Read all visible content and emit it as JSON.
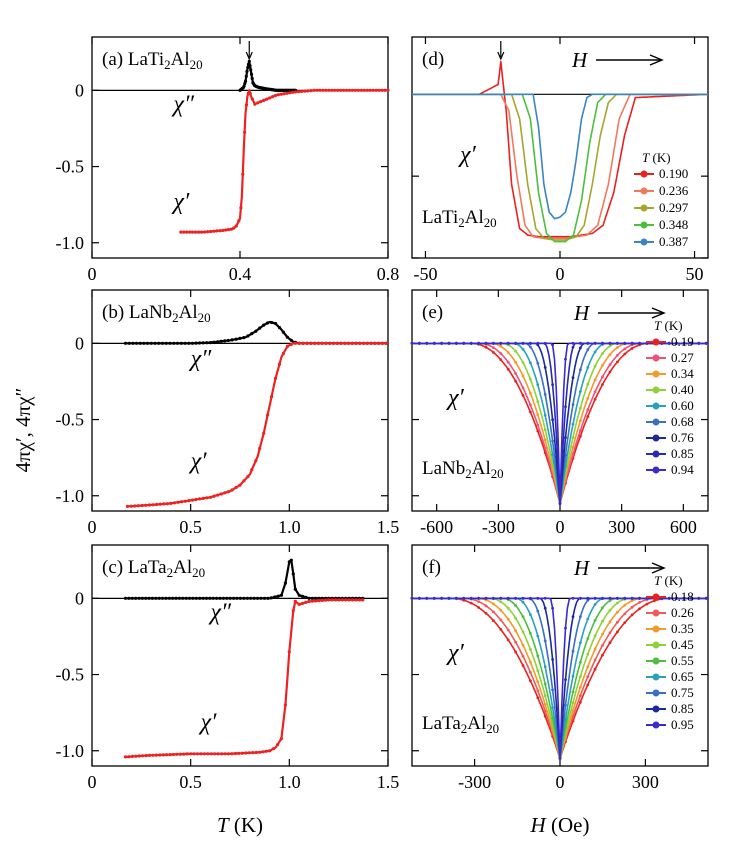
{
  "figure": {
    "ylabel": "4πχ′, 4πχ″",
    "xlabel_left_var": "T",
    "xlabel_left_unit": " (K)",
    "xlabel_right_var": "H",
    "xlabel_right_unit": " (Oe)"
  },
  "chart_data": [
    {
      "type": "line",
      "panel": "(a)",
      "compound": "LaTi2Al20",
      "compound_base": "LaTi",
      "compound_sub1": "2",
      "compound_mid": "Al",
      "compound_sub2": "20",
      "xlabel": "T (K)",
      "xlim": [
        0,
        0.8
      ],
      "ylim": [
        -1.1,
        0.35
      ],
      "xticks": [
        0,
        0.4,
        0.8
      ],
      "xtick_labels": [
        "0",
        "0.4",
        "0.8"
      ],
      "yticks": [
        0,
        -0.5,
        -1.0
      ],
      "ytick_labels": [
        "0",
        "-0.5",
        "-1.0"
      ],
      "arrow_at_x": 0.425,
      "series": [
        {
          "name": "χ″",
          "color": "#000000",
          "x": [
            0.4,
            0.41,
            0.415,
            0.42,
            0.425,
            0.43,
            0.435,
            0.44,
            0.45,
            0.47,
            0.5,
            0.55
          ],
          "y": [
            0.0,
            0.02,
            0.06,
            0.14,
            0.19,
            0.12,
            0.05,
            0.03,
            0.02,
            0.01,
            0.0,
            0.0
          ]
        },
        {
          "name": "χ′",
          "color": "#ee2222",
          "x": [
            0.24,
            0.3,
            0.35,
            0.38,
            0.39,
            0.4,
            0.405,
            0.41,
            0.415,
            0.42,
            0.425,
            0.43,
            0.44,
            0.46,
            0.5,
            0.55,
            0.6,
            0.8
          ],
          "y": [
            -0.93,
            -0.93,
            -0.92,
            -0.91,
            -0.89,
            -0.84,
            -0.7,
            -0.4,
            -0.15,
            -0.04,
            0.0,
            -0.04,
            -0.09,
            -0.07,
            -0.03,
            -0.01,
            0.0,
            0.0
          ]
        }
      ],
      "labels": [
        {
          "text": "χ″",
          "x": 0.22,
          "y": -0.14
        },
        {
          "text": "χ′",
          "x": 0.22,
          "y": -0.78
        }
      ]
    },
    {
      "type": "line",
      "panel": "(b)",
      "compound": "LaNb2Al20",
      "compound_base": "LaNb",
      "compound_sub1": "2",
      "compound_mid": "Al",
      "compound_sub2": "20",
      "xlabel": "T (K)",
      "xlim": [
        0,
        1.5
      ],
      "ylim": [
        -1.1,
        0.35
      ],
      "xticks": [
        0,
        0.5,
        1.0,
        1.5
      ],
      "xtick_labels": [
        "0",
        "0.5",
        "1.0",
        "1.5"
      ],
      "yticks": [
        0,
        -0.5,
        -1.0
      ],
      "ytick_labels": [
        "0",
        "-0.5",
        "-1.0"
      ],
      "series": [
        {
          "name": "χ″",
          "color": "#000000",
          "x": [
            0.17,
            0.3,
            0.5,
            0.6,
            0.7,
            0.78,
            0.83,
            0.87,
            0.9,
            0.93,
            0.96,
            0.99,
            1.02,
            1.05,
            1.1,
            1.5
          ],
          "y": [
            0.0,
            0.0,
            0.0,
            0.005,
            0.02,
            0.04,
            0.08,
            0.12,
            0.14,
            0.13,
            0.09,
            0.04,
            0.01,
            0.0,
            0.0,
            0.0
          ]
        },
        {
          "name": "χ′",
          "color": "#ee2222",
          "x": [
            0.18,
            0.3,
            0.4,
            0.5,
            0.6,
            0.7,
            0.75,
            0.8,
            0.84,
            0.87,
            0.9,
            0.93,
            0.96,
            0.99,
            1.02,
            1.05,
            1.1,
            1.5
          ],
          "y": [
            -1.07,
            -1.06,
            -1.05,
            -1.03,
            -1.01,
            -0.97,
            -0.93,
            -0.86,
            -0.74,
            -0.59,
            -0.41,
            -0.23,
            -0.09,
            -0.02,
            0.0,
            0.0,
            0.0,
            0.0
          ]
        }
      ],
      "labels": [
        {
          "text": "χ″",
          "x": 0.5,
          "y": -0.15
        },
        {
          "text": "χ′",
          "x": 0.5,
          "y": -0.82
        }
      ]
    },
    {
      "type": "line",
      "panel": "(c)",
      "compound": "LaTa2Al20",
      "compound_base": "LaTa",
      "compound_sub1": "2",
      "compound_mid": "Al",
      "compound_sub2": "20",
      "xlabel": "T (K)",
      "xlim": [
        0,
        1.5
      ],
      "ylim": [
        -1.1,
        0.35
      ],
      "xticks": [
        0,
        0.5,
        1.0,
        1.5
      ],
      "xtick_labels": [
        "0",
        "0.5",
        "1.0",
        "1.5"
      ],
      "yticks": [
        0,
        -0.5,
        -1.0
      ],
      "ytick_labels": [
        "0",
        "-0.5",
        "-1.0"
      ],
      "series": [
        {
          "name": "χ″",
          "color": "#000000",
          "x": [
            0.17,
            0.4,
            0.7,
            0.9,
            0.96,
            0.98,
            1.0,
            1.01,
            1.02,
            1.03,
            1.05,
            1.1,
            1.2,
            1.38
          ],
          "y": [
            0.0,
            0.0,
            0.0,
            0.0,
            0.02,
            0.1,
            0.24,
            0.25,
            0.16,
            0.06,
            0.02,
            0.0,
            0.0,
            0.0
          ]
        },
        {
          "name": "χ′",
          "color": "#ee2222",
          "x": [
            0.17,
            0.3,
            0.5,
            0.7,
            0.85,
            0.9,
            0.93,
            0.96,
            0.98,
            1.0,
            1.02,
            1.03,
            1.05,
            1.1,
            1.2,
            1.38
          ],
          "y": [
            -1.04,
            -1.03,
            -1.02,
            -1.02,
            -1.01,
            -1.0,
            -0.98,
            -0.92,
            -0.7,
            -0.35,
            -0.08,
            -0.02,
            -0.04,
            -0.02,
            -0.01,
            -0.01
          ]
        }
      ],
      "labels": [
        {
          "text": "χ″",
          "x": 0.6,
          "y": -0.14
        },
        {
          "text": "χ′",
          "x": 0.55,
          "y": -0.86
        }
      ]
    },
    {
      "type": "line",
      "panel": "(d)",
      "compound": "LaTi2Al20",
      "compound_base": "LaTi",
      "compound_sub1": "2",
      "compound_mid": "Al",
      "compound_sub2": "20",
      "xlabel": "H (Oe)",
      "xlim": [
        -55,
        55
      ],
      "ylim": [
        -1.0,
        0.35
      ],
      "xticks": [
        -50,
        0,
        50
      ],
      "xtick_labels": [
        "-50",
        "0",
        "50"
      ],
      "field_label": "H",
      "curve_label": "χ′",
      "arrow_at_x": -22,
      "legend_title_var": "T",
      "legend_title_unit": " (K)",
      "series": [
        {
          "name": "0.190",
          "color": "#e8231f",
          "x": [
            -55,
            -30,
            -23,
            -22,
            -21,
            -20,
            -18,
            -15,
            -12,
            -8,
            -4,
            0,
            4,
            8,
            12,
            16,
            20,
            24,
            28,
            55
          ],
          "y": [
            0.0,
            0.0,
            0.06,
            0.2,
            0.05,
            -0.1,
            -0.55,
            -0.82,
            -0.86,
            -0.87,
            -0.87,
            -0.87,
            -0.87,
            -0.86,
            -0.85,
            -0.8,
            -0.6,
            -0.25,
            -0.02,
            0.0
          ]
        },
        {
          "name": "0.236",
          "color": "#f07a5e",
          "x": [
            -55,
            -22,
            -19,
            -16,
            -13,
            -10,
            -6,
            -2,
            2,
            6,
            10,
            14,
            18,
            22,
            26,
            55
          ],
          "y": [
            0.0,
            0.0,
            -0.1,
            -0.5,
            -0.8,
            -0.87,
            -0.88,
            -0.88,
            -0.88,
            -0.87,
            -0.86,
            -0.8,
            -0.55,
            -0.15,
            0.0,
            0.0
          ]
        },
        {
          "name": "0.297",
          "color": "#a6a62c",
          "x": [
            -55,
            -18,
            -15,
            -12,
            -9,
            -6,
            -2,
            2,
            6,
            9,
            12,
            15,
            18,
            21,
            55
          ],
          "y": [
            0.0,
            0.0,
            -0.15,
            -0.55,
            -0.82,
            -0.88,
            -0.89,
            -0.89,
            -0.87,
            -0.8,
            -0.55,
            -0.25,
            -0.05,
            0.0,
            0.0
          ]
        },
        {
          "name": "0.348",
          "color": "#4cbf3c",
          "x": [
            -55,
            -14,
            -11,
            -8,
            -5,
            -2,
            2,
            5,
            8,
            11,
            14,
            17,
            55
          ],
          "y": [
            0.0,
            0.0,
            -0.15,
            -0.6,
            -0.85,
            -0.9,
            -0.9,
            -0.86,
            -0.65,
            -0.3,
            -0.05,
            0.0,
            0.0
          ]
        },
        {
          "name": "0.387",
          "color": "#3a84c4",
          "x": [
            -55,
            -10,
            -8,
            -6,
            -4,
            -2,
            0,
            2,
            4,
            6,
            8,
            10,
            12,
            55
          ],
          "y": [
            0.0,
            0.0,
            -0.2,
            -0.55,
            -0.72,
            -0.76,
            -0.75,
            -0.72,
            -0.6,
            -0.4,
            -0.15,
            -0.02,
            0.0,
            0.0
          ]
        }
      ]
    },
    {
      "type": "line",
      "panel": "(e)",
      "compound": "LaNb2Al20",
      "compound_base": "LaNb",
      "compound_sub1": "2",
      "compound_mid": "Al",
      "compound_sub2": "20",
      "xlabel": "H (Oe)",
      "xlim": [
        -720,
        720
      ],
      "ylim": [
        -1.1,
        0.35
      ],
      "xticks": [
        -600,
        -300,
        0,
        300,
        600
      ],
      "xtick_labels": [
        "-600",
        "-300",
        "0",
        "300",
        "600"
      ],
      "field_label": "H",
      "curve_label": "χ′",
      "legend_title_var": "T",
      "legend_title_unit": " (K)",
      "series": [
        {
          "name": "0.19",
          "color": "#e8231f",
          "hc": 430
        },
        {
          "name": "0.27",
          "color": "#f0507a",
          "hc": 390
        },
        {
          "name": "0.34",
          "color": "#f39a2a",
          "hc": 335
        },
        {
          "name": "0.40",
          "color": "#8fd13a",
          "hc": 280
        },
        {
          "name": "0.60",
          "color": "#2aa0c0",
          "hc": 225
        },
        {
          "name": "0.68",
          "color": "#3a6fc4",
          "hc": 170
        },
        {
          "name": "0.76",
          "color": "#1a2a9a",
          "hc": 120
        },
        {
          "name": "0.85",
          "color": "#2a2ab0",
          "hc": 75
        },
        {
          "name": "0.94",
          "color": "#3a2ad0",
          "hc": 40
        }
      ]
    },
    {
      "type": "line",
      "panel": "(f)",
      "compound": "LaTa2Al20",
      "compound_base": "LaTa",
      "compound_sub1": "2",
      "compound_mid": "Al",
      "compound_sub2": "20",
      "xlabel": "H (Oe)",
      "xlim": [
        -520,
        520
      ],
      "ylim": [
        -1.1,
        0.35
      ],
      "xticks": [
        -300,
        0,
        300
      ],
      "xtick_labels": [
        "-300",
        "0",
        "300"
      ],
      "field_label": "H",
      "curve_label": "χ′",
      "legend_title_var": "T",
      "legend_title_unit": " (K)",
      "series": [
        {
          "name": "0.18",
          "color": "#e8231f",
          "hc": 380
        },
        {
          "name": "0.26",
          "color": "#f05a5a",
          "hc": 335
        },
        {
          "name": "0.35",
          "color": "#f39a2a",
          "hc": 290
        },
        {
          "name": "0.45",
          "color": "#8fd13a",
          "hc": 245
        },
        {
          "name": "0.55",
          "color": "#4cbf3c",
          "hc": 200
        },
        {
          "name": "0.65",
          "color": "#2aa0c0",
          "hc": 155
        },
        {
          "name": "0.75",
          "color": "#3a6fc4",
          "hc": 110
        },
        {
          "name": "0.85",
          "color": "#1a2a9a",
          "hc": 70
        },
        {
          "name": "0.95",
          "color": "#3a2ad0",
          "hc": 35
        }
      ]
    }
  ]
}
